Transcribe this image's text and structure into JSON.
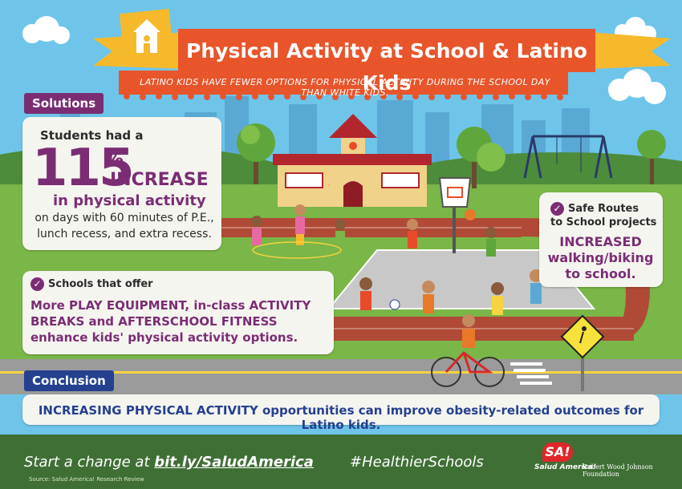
{
  "banner": {
    "title": "Physical Activity at School & Latino Kids",
    "subtitle": "LATINO KIDS HAVE FEWER OPTIONS FOR PHYSICAL ACTIVITY DURING THE SCHOOL DAY THAN WHITE KIDS."
  },
  "solutions": {
    "tab_label": "Solutions",
    "intro": "Students had a",
    "stat_number": "115",
    "stat_percent": "%",
    "stat_word": "INCREASE",
    "stat_line": "in physical activity",
    "detail_line1": "on days with 60 minutes of P.E.,",
    "detail_line2": "lunch recess, and extra recess."
  },
  "offer": {
    "heading": "Schools that offer",
    "line1": "More PLAY EQUIPMENT,  in-class ACTIVITY",
    "line2": "BREAKS and AFTERSCHOOL FITNESS",
    "line3": "enhance kids' physical activity options."
  },
  "routes": {
    "heading1": "Safe Routes",
    "heading2": "to School projects",
    "body1": "INCREASED",
    "body2": "walking/biking",
    "body3": "to school."
  },
  "conclusion": {
    "tab_label": "Conclusion",
    "text": "INCREASING PHYSICAL ACTIVITY opportunities can improve obesity-related outcomes for Latino kids."
  },
  "footer": {
    "cta_prefix": "Start a change at ",
    "cta_link": "bit.ly/SaludAmerica",
    "hashtag": "#HealthierSchools",
    "source": "Source: Salud America! Research Review",
    "logo_badge": "SA!",
    "logo_name": "Salud America!",
    "partner": "Robert Wood Johnson Foundation"
  },
  "colors": {
    "sky": "#6ec5e9",
    "purple": "#7b2d74",
    "blue": "#25408f",
    "banner_orange": "#e8552b",
    "banner_yellow": "#f6b92c",
    "grass": "#7ab648",
    "track": "#b04a36"
  },
  "icons": [
    "check-icon",
    "school-logo-icon",
    "pedestrian-sign-icon",
    "cloud-icon",
    "tree-icon",
    "basketball-hoop-icon",
    "swing-set-icon"
  ]
}
